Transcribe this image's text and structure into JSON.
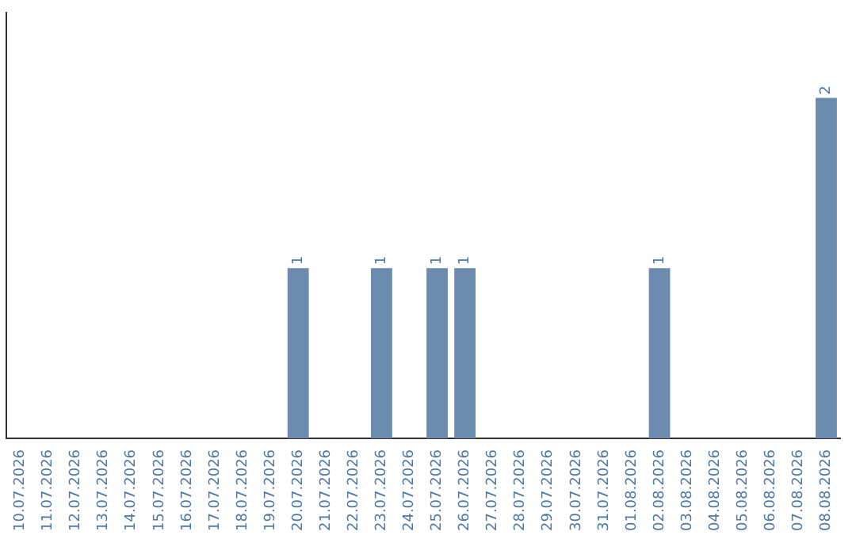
{
  "chart_data": {
    "type": "bar",
    "tick_labels": "x",
    "categories": [
      "10.07.2026",
      "11.07.2026",
      "12.07.2026",
      "13.07.2026",
      "14.07.2026",
      "15.07.2026",
      "16.07.2026",
      "17.07.2026",
      "18.07.2026",
      "19.07.2026",
      "20.07.2026",
      "21.07.2026",
      "22.07.2026",
      "23.07.2026",
      "24.07.2026",
      "25.07.2026",
      "26.07.2026",
      "27.07.2026",
      "28.07.2026",
      "29.07.2026",
      "30.07.2026",
      "31.07.2026",
      "01.08.2026",
      "02.08.2026",
      "03.08.2026",
      "04.08.2026",
      "05.08.2026",
      "06.08.2026",
      "07.08.2026",
      "08.08.2026"
    ],
    "values": [
      0,
      0,
      0,
      0,
      0,
      0,
      0,
      0,
      0,
      0,
      1,
      0,
      0,
      1,
      0,
      1,
      1,
      0,
      0,
      0,
      0,
      0,
      0,
      1,
      0,
      0,
      0,
      0,
      0,
      2
    ],
    "value_labels": [
      null,
      null,
      null,
      null,
      null,
      null,
      null,
      null,
      null,
      null,
      "1",
      null,
      null,
      "1",
      null,
      "1",
      "1",
      null,
      null,
      null,
      null,
      null,
      null,
      "1",
      null,
      null,
      null,
      null,
      null,
      "2"
    ],
    "color": "#6b8cae",
    "grid": false,
    "legend": false
  }
}
